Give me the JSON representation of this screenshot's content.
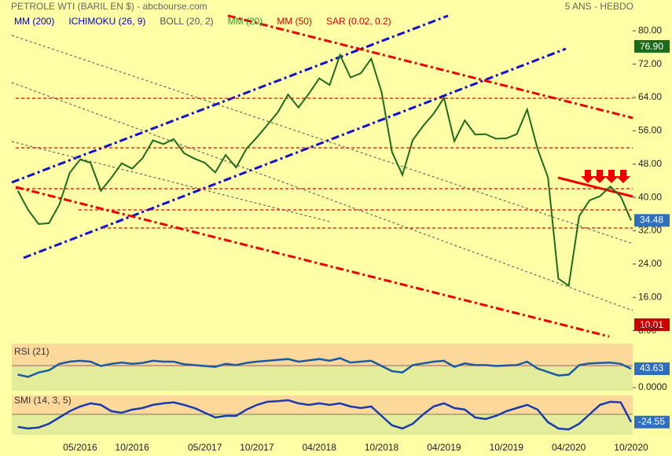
{
  "chart_data": [
    {
      "type": "line",
      "title": "PETROLE WTI (BARIL EN $) - abcbourse.com",
      "subtitle": "5 ANS - HEBDO",
      "legend": [
        {
          "label": "MM (200)",
          "color": "#0000cc"
        },
        {
          "label": "ICHIMOKU (26, 9)",
          "color": "#0000cc"
        },
        {
          "label": "BOLL (20, 2)",
          "color": "#555555"
        },
        {
          "label": "MM (20)",
          "color": "#2a9a2a"
        },
        {
          "label": "MM (50)",
          "color": "#e00000"
        },
        {
          "label": "SAR (0.02, 0.2)",
          "color": "#e00000"
        }
      ],
      "categories": [
        null,
        null,
        null,
        null,
        null,
        null,
        "05/2016",
        null,
        null,
        null,
        null,
        "10/2016",
        null,
        null,
        null,
        null,
        null,
        null,
        "05/2017",
        null,
        null,
        null,
        null,
        "10/2017",
        null,
        null,
        null,
        null,
        null,
        "04/2018",
        null,
        null,
        null,
        null,
        null,
        "10/2018",
        null,
        null,
        null,
        null,
        null,
        "04/2019",
        null,
        null,
        null,
        null,
        null,
        "10/2019",
        null,
        null,
        null,
        null,
        null,
        "04/2020",
        null,
        null,
        null,
        null,
        null,
        "10/2020"
      ],
      "values": [
        41.6,
        37.0,
        33.6,
        33.8,
        38.3,
        45.9,
        49.1,
        48.3,
        41.6,
        44.7,
        48.2,
        46.9,
        49.4,
        53.7,
        52.8,
        54.0,
        50.6,
        49.3,
        48.3,
        46.0,
        50.2,
        47.2,
        51.7,
        54.4,
        57.4,
        60.4,
        64.7,
        61.6,
        64.9,
        68.6,
        67.0,
        74.2,
        68.8,
        69.8,
        73.3,
        65.3,
        50.9,
        45.4,
        53.8,
        57.2,
        60.1,
        63.9,
        53.5,
        58.5,
        55.1,
        55.2,
        54.1,
        54.2,
        55.2,
        61.1,
        51.6,
        44.8,
        20.5,
        18.8,
        35.5,
        39.3,
        40.3,
        42.6,
        40.2,
        34.48
      ],
      "color": "#1f6a1f",
      "high_label": "76.90",
      "low_label": "10.01",
      "ylim": [
        5.85,
        87.4
      ],
      "yticks": [
        {
          "value": 8,
          "label": "8.00"
        },
        {
          "value": 16,
          "label": "16.00"
        },
        {
          "value": 24,
          "label": "24.00"
        },
        {
          "value": 32,
          "label": "32.00"
        },
        {
          "value": 40,
          "label": "40.00"
        },
        {
          "value": 48,
          "label": "48.00"
        },
        {
          "value": 56,
          "label": "56.00"
        },
        {
          "value": 64,
          "label": "64.00"
        },
        {
          "value": 72,
          "label": "72.00"
        },
        {
          "value": 80,
          "label": "80.00"
        }
      ]
    },
    {
      "type": "line",
      "title": "RSI (21)",
      "values": [
        30,
        25,
        35,
        40,
        55,
        60,
        62,
        60,
        50,
        55,
        58,
        55,
        57,
        62,
        60,
        60,
        54,
        52,
        50,
        48,
        55,
        52,
        57,
        60,
        62,
        64,
        66,
        60,
        63,
        66,
        62,
        68,
        58,
        60,
        62,
        50,
        38,
        35,
        52,
        56,
        60,
        62,
        48,
        56,
        52,
        52,
        50,
        51,
        52,
        60,
        44,
        36,
        28,
        30,
        52,
        56,
        57,
        58,
        55,
        43.63
      ],
      "color": "#1a5aa0",
      "ylim": [
        0,
        100
      ],
      "yticks": [
        {
          "value": 0,
          "label": "0.0000"
        }
      ]
    },
    {
      "type": "line",
      "title": "SMI (14, 3, 5)",
      "values": [
        -40,
        -45,
        -42,
        -30,
        -10,
        10,
        25,
        35,
        30,
        10,
        5,
        15,
        20,
        30,
        35,
        38,
        30,
        20,
        5,
        -10,
        -5,
        -5,
        15,
        30,
        40,
        42,
        45,
        35,
        30,
        35,
        30,
        35,
        25,
        20,
        25,
        -5,
        -35,
        -45,
        -30,
        0,
        25,
        35,
        20,
        15,
        -10,
        -15,
        -5,
        10,
        20,
        30,
        15,
        -25,
        -45,
        -48,
        -30,
        0,
        30,
        40,
        38,
        -24.55
      ],
      "color": "#1a3ab0",
      "ylim": [
        -60,
        60
      ]
    }
  ]
}
